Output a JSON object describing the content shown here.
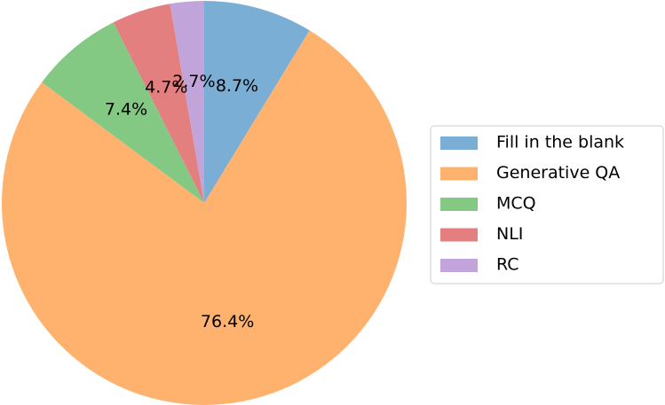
{
  "chart_data": {
    "type": "pie",
    "categories": [
      "Fill in the blank",
      "Generative QA",
      "MCQ",
      "NLI",
      "RC"
    ],
    "values": [
      8.7,
      76.4,
      7.4,
      4.7,
      2.7
    ],
    "value_labels": [
      "8.7%",
      "76.4%",
      "7.4%",
      "4.7%",
      "2.7%"
    ],
    "colors": [
      "#7aaed4",
      "#ffb26e",
      "#83c983",
      "#e47f80",
      "#c1a5da"
    ],
    "legend": "right"
  }
}
